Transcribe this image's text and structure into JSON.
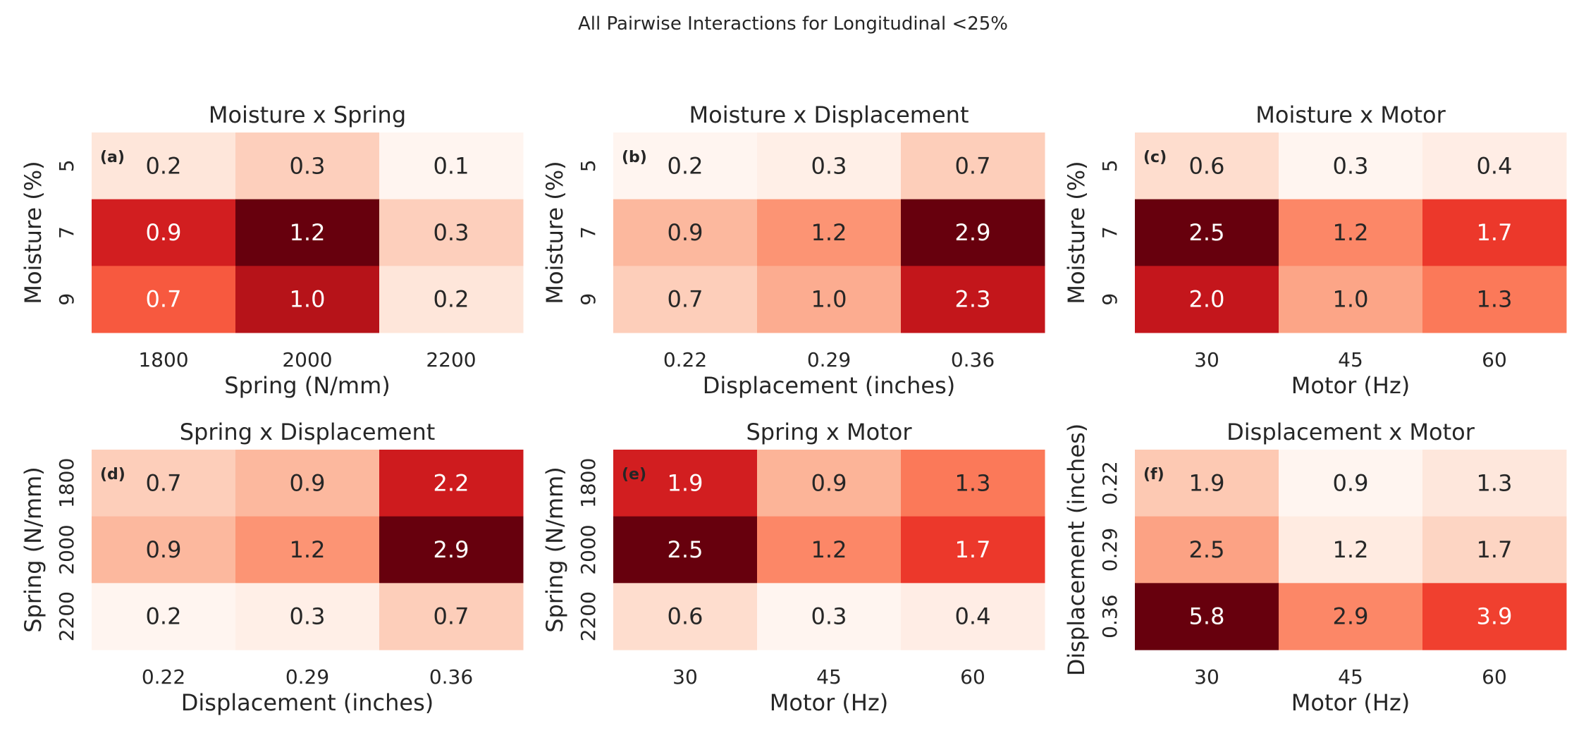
{
  "suptitle": "All Pairwise Interactions for Longitudinal <25%",
  "colormap": "Reds",
  "chart_data": [
    {
      "type": "heatmap",
      "panel": "(a)",
      "title": "Moisture x Spring",
      "xlabel": "Spring (N/mm)",
      "ylabel": "Moisture (%)",
      "x_categories": [
        "1800",
        "2000",
        "2200"
      ],
      "y_categories": [
        "5",
        "7",
        "9"
      ],
      "values": [
        [
          0.2,
          0.3,
          0.1
        ],
        [
          0.9,
          1.2,
          0.3
        ],
        [
          0.7,
          1.0,
          0.2
        ]
      ],
      "labels": [
        [
          "0.2",
          "0.3",
          "0.1"
        ],
        [
          "0.9",
          "1.2",
          "0.3"
        ],
        [
          "0.7",
          "1.0",
          "0.2"
        ]
      ]
    },
    {
      "type": "heatmap",
      "panel": "(b)",
      "title": "Moisture x Displacement",
      "xlabel": "Displacement (inches)",
      "ylabel": "Moisture (%)",
      "x_categories": [
        "0.22",
        "0.29",
        "0.36"
      ],
      "y_categories": [
        "5",
        "7",
        "9"
      ],
      "values": [
        [
          0.2,
          0.3,
          0.7
        ],
        [
          0.9,
          1.2,
          2.9
        ],
        [
          0.7,
          1.0,
          2.3
        ]
      ],
      "labels": [
        [
          "0.2",
          "0.3",
          "0.7"
        ],
        [
          "0.9",
          "1.2",
          "2.9"
        ],
        [
          "0.7",
          "1.0",
          "2.3"
        ]
      ]
    },
    {
      "type": "heatmap",
      "panel": "(c)",
      "title": "Moisture x Motor",
      "xlabel": "Motor (Hz)",
      "ylabel": "Moisture (%)",
      "x_categories": [
        "30",
        "45",
        "60"
      ],
      "y_categories": [
        "5",
        "7",
        "9"
      ],
      "values": [
        [
          0.6,
          0.3,
          0.4
        ],
        [
          2.5,
          1.2,
          1.7
        ],
        [
          2.0,
          1.0,
          1.3
        ]
      ],
      "labels": [
        [
          "0.6",
          "0.3",
          "0.4"
        ],
        [
          "2.5",
          "1.2",
          "1.7"
        ],
        [
          "2.0",
          "1.0",
          "1.3"
        ]
      ]
    },
    {
      "type": "heatmap",
      "panel": "(d)",
      "title": "Spring x Displacement",
      "xlabel": "Displacement (inches)",
      "ylabel": "Spring (N/mm)",
      "x_categories": [
        "0.22",
        "0.29",
        "0.36"
      ],
      "y_categories": [
        "1800",
        "2000",
        "2200"
      ],
      "values": [
        [
          0.7,
          0.9,
          2.2
        ],
        [
          0.9,
          1.2,
          2.9
        ],
        [
          0.2,
          0.3,
          0.7
        ]
      ],
      "labels": [
        [
          "0.7",
          "0.9",
          "2.2"
        ],
        [
          "0.9",
          "1.2",
          "2.9"
        ],
        [
          "0.2",
          "0.3",
          "0.7"
        ]
      ]
    },
    {
      "type": "heatmap",
      "panel": "(e)",
      "title": "Spring x Motor",
      "xlabel": "Motor (Hz)",
      "ylabel": "Spring (N/mm)",
      "x_categories": [
        "30",
        "45",
        "60"
      ],
      "y_categories": [
        "1800",
        "2000",
        "2200"
      ],
      "values": [
        [
          1.9,
          0.9,
          1.3
        ],
        [
          2.5,
          1.2,
          1.7
        ],
        [
          0.6,
          0.3,
          0.4
        ]
      ],
      "labels": [
        [
          "1.9",
          "0.9",
          "1.3"
        ],
        [
          "2.5",
          "1.2",
          "1.7"
        ],
        [
          "0.6",
          "0.3",
          "0.4"
        ]
      ]
    },
    {
      "type": "heatmap",
      "panel": "(f)",
      "title": "Displacement x Motor",
      "xlabel": "Motor (Hz)",
      "ylabel": "Displacement (inches)",
      "x_categories": [
        "30",
        "45",
        "60"
      ],
      "y_categories": [
        "0.22",
        "0.29",
        "0.36"
      ],
      "values": [
        [
          1.9,
          0.9,
          1.3
        ],
        [
          2.5,
          1.2,
          1.7
        ],
        [
          5.8,
          2.9,
          3.9
        ]
      ],
      "labels": [
        [
          "1.9",
          "0.9",
          "1.3"
        ],
        [
          "2.5",
          "1.2",
          "1.7"
        ],
        [
          "5.8",
          "2.9",
          "3.9"
        ]
      ]
    }
  ]
}
